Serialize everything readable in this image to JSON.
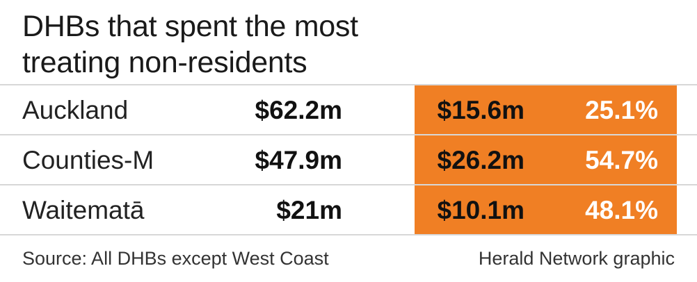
{
  "title_lines": [
    "DHBs that spent the most",
    "treating non-residents"
  ],
  "chart_data": {
    "type": "table",
    "title": "DHBs that spent the most treating non-residents",
    "rows": [
      {
        "name": "Auckland",
        "total": "$62.2m",
        "non_resident": "$15.6m",
        "percent": "25.1%"
      },
      {
        "name": "Counties-M",
        "total": "$47.9m",
        "non_resident": "$26.2m",
        "percent": "54.7%"
      },
      {
        "name": "Waitematā",
        "total": "$21m",
        "non_resident": "$10.1m",
        "percent": "48.1%"
      }
    ],
    "highlight_color": "#f07f24"
  },
  "footer": {
    "source": "Source: All DHBs except West Coast",
    "credit": "Herald Network graphic"
  }
}
